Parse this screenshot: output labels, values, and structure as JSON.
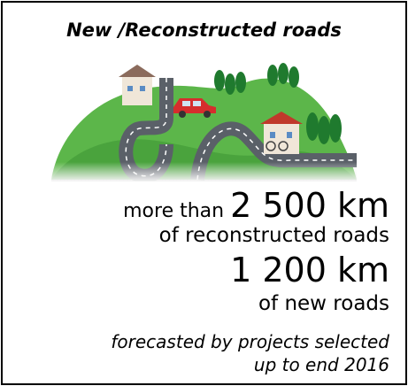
{
  "header": {
    "title": "New /Reconstructed roads"
  },
  "stats": {
    "reconstructed": {
      "prefix": "more than",
      "amount": "2 500 km",
      "label": "of reconstructed roads"
    },
    "new": {
      "amount": "1 200 km",
      "label": "of new roads"
    }
  },
  "footnote": {
    "lines": [
      "forecasted by projects selected",
      "up to end 2016"
    ]
  }
}
